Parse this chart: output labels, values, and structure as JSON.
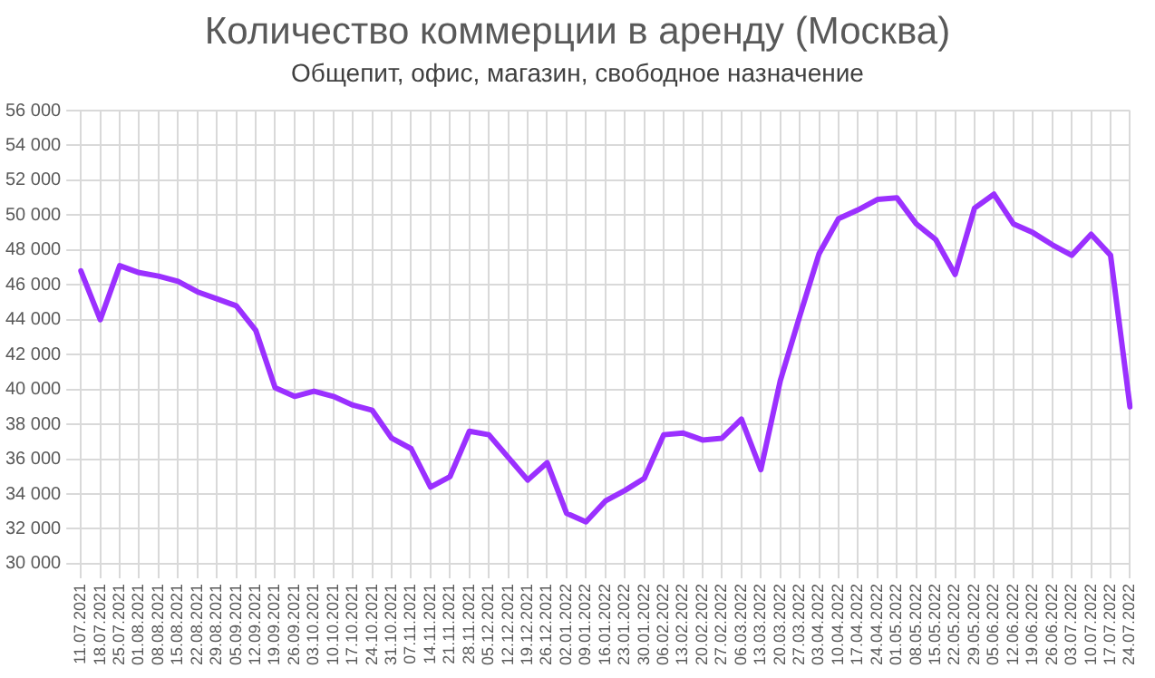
{
  "chart_data": {
    "type": "line",
    "title": "Количество коммерции в аренду (Москва)",
    "subtitle": "Общепит, офис, магазин, свободное назначение",
    "categories": [
      "11.07.2021",
      "18.07.2021",
      "25.07.2021",
      "01.08.2021",
      "08.08.2021",
      "15.08.2021",
      "22.08.2021",
      "29.08.2021",
      "05.09.2021",
      "12.09.2021",
      "19.09.2021",
      "26.09.2021",
      "03.10.2021",
      "10.10.2021",
      "17.10.2021",
      "24.10.2021",
      "31.10.2021",
      "07.11.2021",
      "14.11.2021",
      "21.11.2021",
      "28.11.2021",
      "05.12.2021",
      "12.12.2021",
      "19.12.2021",
      "26.12.2021",
      "02.01.2022",
      "09.01.2022",
      "16.01.2022",
      "23.01.2022",
      "30.01.2022",
      "06.02.2022",
      "13.02.2022",
      "20.02.2022",
      "27.02.2022",
      "06.03.2022",
      "13.03.2022",
      "20.03.2022",
      "27.03.2022",
      "03.04.2022",
      "10.04.2022",
      "17.04.2022",
      "24.04.2022",
      "01.05.2022",
      "08.05.2022",
      "15.05.2022",
      "22.05.2022",
      "29.05.2022",
      "05.06.2022",
      "12.06.2022",
      "19.06.2022",
      "26.06.2022",
      "03.07.2022",
      "10.07.2022",
      "17.07.2022",
      "24.07.2022"
    ],
    "series": [
      {
        "color": "#9b30ff",
        "values": [
          46800,
          44000,
          47100,
          46700,
          46500,
          46200,
          45600,
          45200,
          44800,
          43400,
          40100,
          39600,
          39900,
          39600,
          39100,
          38800,
          37200,
          36600,
          34400,
          35000,
          37600,
          37400,
          36100,
          34800,
          35800,
          32900,
          32400,
          33600,
          34200,
          34900,
          37400,
          37500,
          37100,
          37200,
          38300,
          35400,
          40500,
          44200,
          47800,
          49800,
          50300,
          50900,
          51000,
          49500,
          48600,
          46600,
          50400,
          51200,
          49500,
          49000,
          48300,
          47700,
          48900,
          47700,
          39000
        ]
      }
    ],
    "ylim": [
      30000,
      56000
    ],
    "yticks": [
      {
        "value": 30000,
        "label": "30 000"
      },
      {
        "value": 32000,
        "label": "32 000"
      },
      {
        "value": 34000,
        "label": "34 000"
      },
      {
        "value": 36000,
        "label": "36 000"
      },
      {
        "value": 38000,
        "label": "38 000"
      },
      {
        "value": 40000,
        "label": "40 000"
      },
      {
        "value": 42000,
        "label": "42 000"
      },
      {
        "value": 44000,
        "label": "44 000"
      },
      {
        "value": 46000,
        "label": "46 000"
      },
      {
        "value": 48000,
        "label": "48 000"
      },
      {
        "value": 50000,
        "label": "50 000"
      },
      {
        "value": 52000,
        "label": "52 000"
      },
      {
        "value": 54000,
        "label": "54 000"
      },
      {
        "value": 56000,
        "label": "56 000"
      }
    ],
    "grid": true,
    "legend": false,
    "marker": "none",
    "line_style": "solid"
  }
}
